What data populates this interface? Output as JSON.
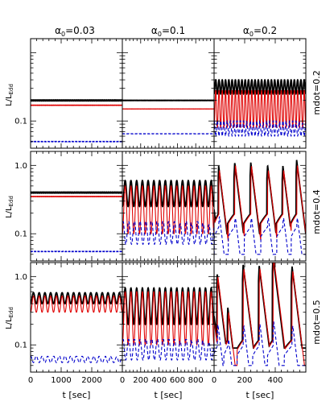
{
  "figure": {
    "column_titles": [
      {
        "symbol": "α",
        "sub": "0",
        "value": "=0.03"
      },
      {
        "symbol": "α",
        "sub": "0",
        "value": "=0.1"
      },
      {
        "symbol": "α",
        "sub": "0",
        "value": "=0.2"
      }
    ],
    "row_labels": [
      "mdot=0.2",
      "mdot=0.4",
      "mdot=0.5"
    ],
    "y_label": {
      "main": "L/L",
      "sub": "Edd"
    },
    "x_label": "t [sec]",
    "colors": {
      "total": "#000000",
      "red": "#e00000",
      "blue": "#0000cc"
    }
  },
  "chart_data": [
    {
      "type": "line",
      "panel": "row1-col1",
      "row_label": "mdot=0.2",
      "column_title": "α0=0.03",
      "yscale": "log",
      "ylim": [
        0.04,
        1.6
      ],
      "xlim": [
        0,
        3000
      ],
      "yticks": [],
      "xticks": [],
      "series": [
        {
          "color": "#000000",
          "style": "solid",
          "kind": "flat",
          "level": 0.2
        },
        {
          "color": "#e00000",
          "style": "solid",
          "kind": "flat",
          "level": 0.17
        },
        {
          "color": "#0000cc",
          "style": "dashed",
          "kind": "flat",
          "level": 0.05
        }
      ]
    },
    {
      "type": "line",
      "panel": "row1-col2",
      "row_label": "mdot=0.2",
      "column_title": "α0=0.1",
      "yscale": "log",
      "ylim": [
        0.04,
        1.6
      ],
      "xlim": [
        0,
        1000
      ],
      "yticks": [],
      "xticks": [],
      "series": [
        {
          "color": "#000000",
          "style": "solid",
          "kind": "flat",
          "level": 0.2
        },
        {
          "color": "#e00000",
          "style": "solid",
          "kind": "flat",
          "level": 0.15
        },
        {
          "color": "#0000cc",
          "style": "dashed",
          "kind": "flat",
          "level": 0.065
        }
      ]
    },
    {
      "type": "line",
      "panel": "row1-col3",
      "row_label": "mdot=0.2",
      "column_title": "α0=0.2",
      "yscale": "log",
      "ylim": [
        0.04,
        1.6
      ],
      "xlim": [
        0,
        600
      ],
      "yticks": [],
      "xticks": [],
      "series": [
        {
          "color": "#000000",
          "style": "solid",
          "kind": "osc",
          "low": 0.25,
          "high": 0.4,
          "cycles": 28
        },
        {
          "color": "#e00000",
          "style": "solid",
          "kind": "osc",
          "low": 0.08,
          "high": 0.28,
          "cycles": 28
        },
        {
          "color": "#0000cc",
          "style": "dashed",
          "kind": "osc",
          "low": 0.06,
          "high": 0.1,
          "cycles": 28,
          "phase": 0.5
        }
      ]
    },
    {
      "type": "line",
      "panel": "row2-col1",
      "row_label": "mdot=0.4",
      "column_title": "α0=0.03",
      "yscale": "log",
      "ylim": [
        0.04,
        1.6
      ],
      "xlim": [
        0,
        3000
      ],
      "yticks": [
        {
          "v": 1.0,
          "label": "1.0"
        },
        {
          "v": 0.1,
          "label": "0.1"
        }
      ],
      "xticks": [],
      "series": [
        {
          "color": "#000000",
          "style": "solid",
          "kind": "flat",
          "level": 0.4
        },
        {
          "color": "#e00000",
          "style": "solid",
          "kind": "flat",
          "level": 0.35
        },
        {
          "color": "#0000cc",
          "style": "dashed",
          "kind": "flat",
          "level": 0.055
        }
      ]
    },
    {
      "type": "line",
      "panel": "row2-col2",
      "row_label": "mdot=0.4",
      "column_title": "α0=0.1",
      "yscale": "log",
      "ylim": [
        0.04,
        1.6
      ],
      "xlim": [
        0,
        1000
      ],
      "yticks": [],
      "xticks": [],
      "series": [
        {
          "color": "#000000",
          "style": "solid",
          "kind": "osc",
          "low": 0.25,
          "high": 0.6,
          "cycles": 16
        },
        {
          "color": "#e00000",
          "style": "solid",
          "kind": "osc",
          "low": 0.1,
          "high": 0.5,
          "cycles": 16
        },
        {
          "color": "#0000cc",
          "style": "dashed",
          "kind": "osc",
          "low": 0.07,
          "high": 0.15,
          "cycles": 16,
          "phase": 0.4
        }
      ]
    },
    {
      "type": "line",
      "panel": "row2-col3",
      "row_label": "mdot=0.4",
      "column_title": "α0=0.2",
      "yscale": "log",
      "ylim": [
        0.04,
        1.6
      ],
      "xlim": [
        0,
        600
      ],
      "yticks": [],
      "xticks": [],
      "series": [
        {
          "color": "#000000",
          "style": "solid",
          "kind": "burst",
          "peaks": [
            [
              30,
              0.98
            ],
            [
              135,
              1.1
            ],
            [
              240,
              1.1
            ],
            [
              350,
              1.0
            ],
            [
              450,
              0.98
            ],
            [
              540,
              1.2
            ]
          ],
          "rise": 0.2,
          "decay": 0.1
        },
        {
          "color": "#e00000",
          "style": "solid",
          "kind": "burst",
          "peaks": [
            [
              35,
              0.85
            ],
            [
              140,
              1.0
            ],
            [
              245,
              0.98
            ],
            [
              355,
              0.85
            ],
            [
              455,
              0.85
            ],
            [
              545,
              1.0
            ]
          ],
          "rise": 0.2,
          "decay": 0.05
        },
        {
          "color": "#0000cc",
          "style": "dashed",
          "kind": "burst",
          "peaks": [
            [
              35,
              0.18
            ],
            [
              140,
              0.17
            ],
            [
              245,
              0.17
            ],
            [
              355,
              0.17
            ],
            [
              455,
              0.17
            ],
            [
              545,
              0.17
            ]
          ],
          "rise": 0.13,
          "decay": 0.05
        }
      ]
    },
    {
      "type": "line",
      "panel": "row3-col1",
      "row_label": "mdot=0.5",
      "column_title": "α0=0.03",
      "yscale": "log",
      "ylim": [
        0.04,
        1.6
      ],
      "xlim": [
        0,
        3000
      ],
      "yticks": [
        {
          "v": 1.0,
          "label": "1.0"
        },
        {
          "v": 0.1,
          "label": "0.1"
        }
      ],
      "xticks": [
        {
          "v": 0,
          "label": "0"
        },
        {
          "v": 1000,
          "label": "1000"
        },
        {
          "v": 2000,
          "label": "2000"
        }
      ],
      "series": [
        {
          "color": "#000000",
          "style": "solid",
          "kind": "osc",
          "low": 0.4,
          "high": 0.58,
          "cycles": 16
        },
        {
          "color": "#e00000",
          "style": "solid",
          "kind": "osc",
          "low": 0.3,
          "high": 0.52,
          "cycles": 16
        },
        {
          "color": "#0000cc",
          "style": "dashed",
          "kind": "osc",
          "low": 0.055,
          "high": 0.068,
          "cycles": 16,
          "phase": 0.5
        }
      ]
    },
    {
      "type": "line",
      "panel": "row3-col2",
      "row_label": "mdot=0.5",
      "column_title": "α0=0.1",
      "yscale": "log",
      "ylim": [
        0.04,
        1.6
      ],
      "xlim": [
        0,
        1000
      ],
      "yticks": [],
      "xticks": [
        {
          "v": 0,
          "label": "0"
        },
        {
          "v": 200,
          "label": "200"
        },
        {
          "v": 400,
          "label": "400"
        },
        {
          "v": 600,
          "label": "600"
        },
        {
          "v": 800,
          "label": "800"
        }
      ],
      "series": [
        {
          "color": "#000000",
          "style": "solid",
          "kind": "osc",
          "low": 0.2,
          "high": 0.68,
          "cycles": 16
        },
        {
          "color": "#e00000",
          "style": "solid",
          "kind": "osc",
          "low": 0.1,
          "high": 0.6,
          "cycles": 16
        },
        {
          "color": "#0000cc",
          "style": "dashed",
          "kind": "osc",
          "low": 0.06,
          "high": 0.12,
          "cycles": 16,
          "phase": 0.4
        }
      ]
    },
    {
      "type": "line",
      "panel": "row3-col3",
      "row_label": "mdot=0.5",
      "column_title": "α0=0.2",
      "yscale": "log",
      "ylim": [
        0.04,
        1.6
      ],
      "xlim": [
        0,
        600
      ],
      "yticks": [],
      "xticks": [
        {
          "v": 0,
          "label": "0"
        },
        {
          "v": 200,
          "label": "200"
        },
        {
          "v": 400,
          "label": "400"
        }
      ],
      "series": [
        {
          "color": "#000000",
          "style": "solid",
          "kind": "burst",
          "peaks": [
            [
              20,
              1.1
            ],
            [
              90,
              0.35
            ],
            [
              190,
              1.5
            ],
            [
              295,
              1.45
            ],
            [
              385,
              2.0
            ],
            [
              510,
              1.4
            ]
          ],
          "rise": 0.12,
          "decay": 0.09
        },
        {
          "color": "#e00000",
          "style": "solid",
          "kind": "burst",
          "peaks": [
            [
              25,
              1.0
            ],
            [
              95,
              0.3
            ],
            [
              195,
              1.3
            ],
            [
              300,
              1.3
            ],
            [
              390,
              1.9
            ],
            [
              515,
              1.2
            ]
          ],
          "rise": 0.12,
          "decay": 0.05
        },
        {
          "color": "#0000cc",
          "style": "dashed",
          "kind": "burst",
          "peaks": [
            [
              25,
              0.2
            ],
            [
              95,
              0.12
            ],
            [
              195,
              0.19
            ],
            [
              300,
              0.2
            ],
            [
              390,
              0.22
            ],
            [
              515,
              0.19
            ]
          ],
          "rise": 0.1,
          "decay": 0.05
        }
      ]
    }
  ]
}
